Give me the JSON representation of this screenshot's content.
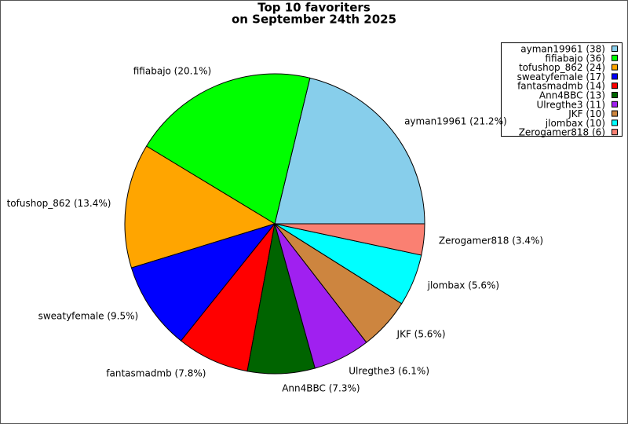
{
  "chart_data": {
    "type": "pie",
    "title": "Top 10 favoriters",
    "subtitle": "on September 24th 2025",
    "categories": [
      "ayman19961",
      "fifiabajo",
      "tofushop_862",
      "sweatyfemale",
      "fantasmadmb",
      "Ann4BBC",
      "Ulregthe3",
      "JKF",
      "jlombax",
      "Zerogamer818"
    ],
    "values": [
      38,
      36,
      24,
      17,
      14,
      13,
      11,
      10,
      10,
      6
    ],
    "value_labels": [
      "ayman19961 (21.2%)",
      "fifiabajo (20.1%)",
      "tofushop_862 (13.4%)",
      "sweatyfemale (9.5%)",
      "fantasmadmb (7.8%)",
      "Ann4BBC (7.3%)",
      "Ulregthe3 (6.1%)",
      "JKF (5.6%)",
      "jlombax (5.6%)",
      "Zerogamer818 (3.4%)"
    ],
    "legend_labels": [
      "ayman19961 (38)",
      "fifiabajo (36)",
      "tofushop_862 (24)",
      "sweatyfemale (17)",
      "fantasmadmb (14)",
      "Ann4BBC (13)",
      "Ulregthe3 (11)",
      "JKF (10)",
      "jlombax (10)",
      "Zerogamer818 (6)"
    ],
    "colors": [
      "#87ceeb",
      "#00ff00",
      "#ffa500",
      "#0000ff",
      "#ff0000",
      "#006400",
      "#a020f0",
      "#cd853f",
      "#00ffff",
      "#fa8072"
    ],
    "legend": "upper right"
  }
}
